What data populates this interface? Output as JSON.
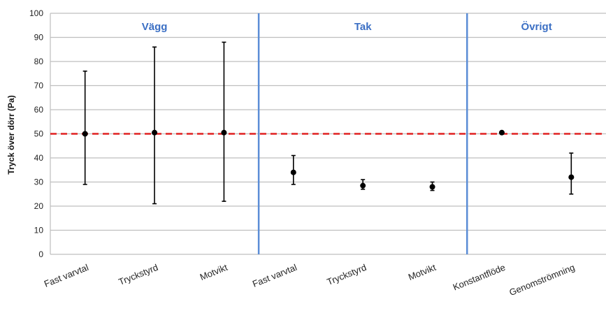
{
  "chart_data": {
    "type": "scatter",
    "ylabel": "Tryck över dörr (Pa)",
    "ylim": [
      0,
      100
    ],
    "yticks": [
      "0",
      "10",
      "20",
      "30",
      "40",
      "50",
      "60",
      "70",
      "80",
      "90",
      "100"
    ],
    "grid": true,
    "reference_line": {
      "y": 50,
      "color": "#e02020",
      "style": "dashed"
    },
    "categories": [
      "Fast varvtal",
      "Tryckstyrd",
      "Motvikt",
      "Fast varvtal",
      "Tryckstyrd",
      "Motvikt",
      "Konstantflöde",
      "Genomströmning"
    ],
    "points": [
      {
        "value": 50,
        "low": 29,
        "high": 76
      },
      {
        "value": 50.5,
        "low": 21,
        "high": 86
      },
      {
        "value": 50.5,
        "low": 22,
        "high": 88
      },
      {
        "value": 34,
        "low": 29,
        "high": 41
      },
      {
        "value": 28.5,
        "low": 27,
        "high": 31
      },
      {
        "value": 28,
        "low": 26.5,
        "high": 30
      },
      {
        "value": 50.5,
        "low": 50,
        "high": 51
      },
      {
        "value": 32,
        "low": 25,
        "high": 42
      }
    ],
    "sections": [
      {
        "label": "Vägg",
        "start": 0,
        "end": 3
      },
      {
        "label": "Tak",
        "start": 3,
        "end": 6
      },
      {
        "label": "Övrigt",
        "start": 6,
        "end": 8
      }
    ],
    "colors": {
      "section_line": "#5b8dd6",
      "section_label": "#3b6fc4",
      "marker": "#000000",
      "grid": "#bfbfbf"
    }
  }
}
